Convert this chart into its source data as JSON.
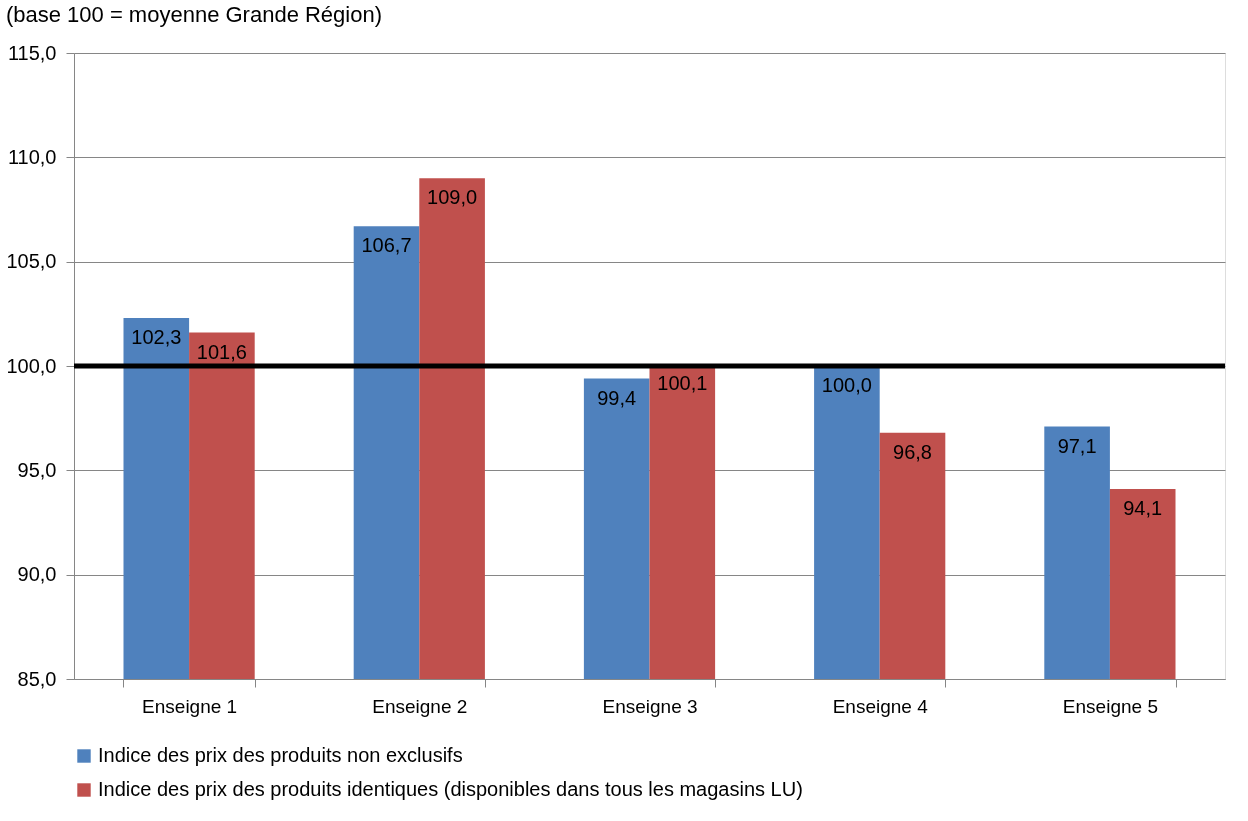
{
  "chart_data": {
    "type": "bar",
    "title": "(base 100 = moyenne Grande Région)",
    "categories": [
      "Enseigne 1",
      "Enseigne 2",
      "Enseigne 3",
      "Enseigne 4",
      "Enseigne 5"
    ],
    "series": [
      {
        "name": "Indice des prix des produits non exclusifs",
        "color": "#4f81bd",
        "values": [
          102.3,
          106.7,
          99.4,
          100.0,
          97.1
        ],
        "value_labels": [
          "102,3",
          "106,7",
          "99,4",
          "100,0",
          "97,1"
        ]
      },
      {
        "name": "Indice des prix des produits identiques (disponibles dans tous les magasins LU)",
        "color": "#c0504d",
        "values": [
          101.6,
          109.0,
          100.1,
          96.8,
          94.1
        ],
        "value_labels": [
          "101,6",
          "109,0",
          "100,1",
          "96,8",
          "94,1"
        ]
      }
    ],
    "ylim": [
      85,
      115
    ],
    "yticks": [
      {
        "value": 85,
        "label": "85,0"
      },
      {
        "value": 90,
        "label": "90,0"
      },
      {
        "value": 95,
        "label": "95,0"
      },
      {
        "value": 100,
        "label": "100,0"
      },
      {
        "value": 105,
        "label": "105,0"
      },
      {
        "value": 110,
        "label": "110,0"
      },
      {
        "value": 115,
        "label": "115,0"
      }
    ],
    "ref_lines": [
      {
        "axis": "y",
        "value": 100,
        "color": "#000000"
      }
    ],
    "grid": "y",
    "legend": "bottom"
  }
}
